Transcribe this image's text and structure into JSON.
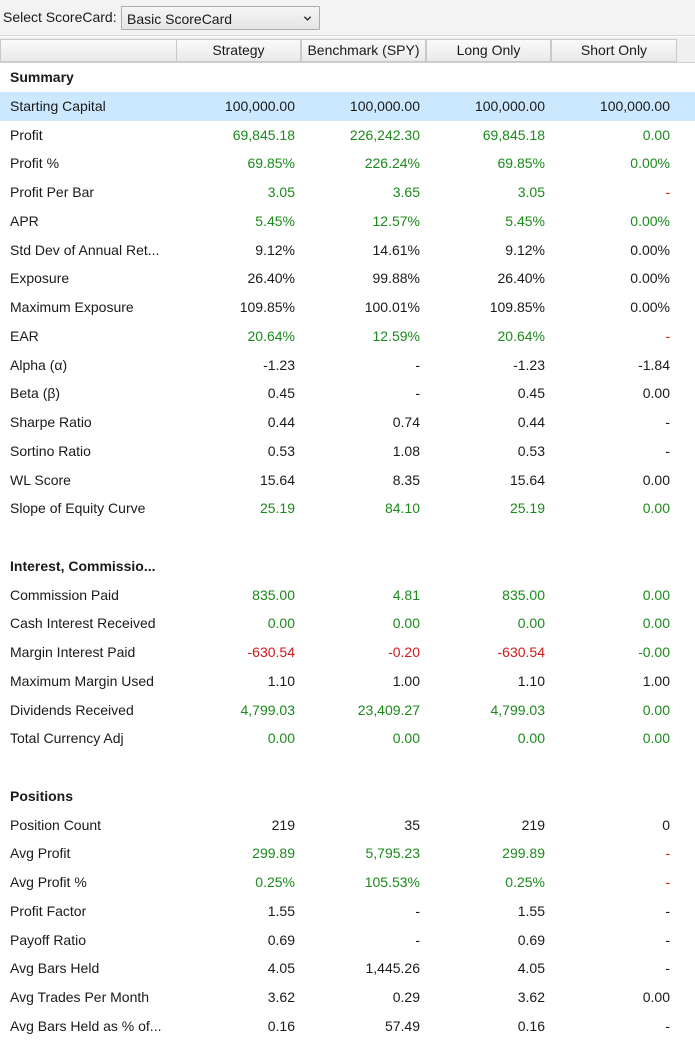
{
  "toolbar": {
    "select_label": "Select ScoreCard:",
    "scorecard_value": "Basic ScoreCard"
  },
  "columns": [
    "Strategy",
    "Benchmark (SPY)",
    "Long Only",
    "Short Only"
  ],
  "colors": {
    "positive": "#1a8a1a",
    "negative": "#d11a1a",
    "neutral": "#1a1a1a",
    "selected_row": "#cce8ff"
  },
  "rows": [
    {
      "type": "section",
      "name": "Summary"
    },
    {
      "type": "data",
      "name": "Starting Capital",
      "values": [
        "100,000.00",
        "100,000.00",
        "100,000.00",
        "100,000.00"
      ],
      "colors": [
        "k",
        "k",
        "k",
        "k"
      ],
      "selected": true
    },
    {
      "type": "data",
      "name": "Profit",
      "values": [
        "69,845.18",
        "226,242.30",
        "69,845.18",
        "0.00"
      ],
      "colors": [
        "g",
        "g",
        "g",
        "g"
      ]
    },
    {
      "type": "data",
      "name": "Profit %",
      "values": [
        "69.85%",
        "226.24%",
        "69.85%",
        "0.00%"
      ],
      "colors": [
        "g",
        "g",
        "g",
        "g"
      ]
    },
    {
      "type": "data",
      "name": "Profit Per Bar",
      "values": [
        "3.05",
        "3.65",
        "3.05",
        "-"
      ],
      "colors": [
        "g",
        "g",
        "g",
        "r"
      ]
    },
    {
      "type": "data",
      "name": "APR",
      "values": [
        "5.45%",
        "12.57%",
        "5.45%",
        "0.00%"
      ],
      "colors": [
        "g",
        "g",
        "g",
        "g"
      ]
    },
    {
      "type": "data",
      "name": "Std Dev of Annual Ret...",
      "values": [
        "9.12%",
        "14.61%",
        "9.12%",
        "0.00%"
      ],
      "colors": [
        "k",
        "k",
        "k",
        "k"
      ]
    },
    {
      "type": "data",
      "name": "Exposure",
      "values": [
        "26.40%",
        "99.88%",
        "26.40%",
        "0.00%"
      ],
      "colors": [
        "k",
        "k",
        "k",
        "k"
      ]
    },
    {
      "type": "data",
      "name": "Maximum Exposure",
      "values": [
        "109.85%",
        "100.01%",
        "109.85%",
        "0.00%"
      ],
      "colors": [
        "k",
        "k",
        "k",
        "k"
      ]
    },
    {
      "type": "data",
      "name": "EAR",
      "values": [
        "20.64%",
        "12.59%",
        "20.64%",
        "-"
      ],
      "colors": [
        "g",
        "g",
        "g",
        "r"
      ]
    },
    {
      "type": "data",
      "name": "Alpha (α)",
      "values": [
        "-1.23",
        "-",
        "-1.23",
        "-1.84"
      ],
      "colors": [
        "k",
        "k",
        "k",
        "k"
      ]
    },
    {
      "type": "data",
      "name": "Beta (β)",
      "values": [
        "0.45",
        "-",
        "0.45",
        "0.00"
      ],
      "colors": [
        "k",
        "k",
        "k",
        "k"
      ]
    },
    {
      "type": "data",
      "name": "Sharpe Ratio",
      "values": [
        "0.44",
        "0.74",
        "0.44",
        "-"
      ],
      "colors": [
        "k",
        "k",
        "k",
        "k"
      ]
    },
    {
      "type": "data",
      "name": "Sortino Ratio",
      "values": [
        "0.53",
        "1.08",
        "0.53",
        "-"
      ],
      "colors": [
        "k",
        "k",
        "k",
        "k"
      ]
    },
    {
      "type": "data",
      "name": "WL Score",
      "values": [
        "15.64",
        "8.35",
        "15.64",
        "0.00"
      ],
      "colors": [
        "k",
        "k",
        "k",
        "k"
      ]
    },
    {
      "type": "data",
      "name": "Slope of Equity Curve",
      "values": [
        "25.19",
        "84.10",
        "25.19",
        "0.00"
      ],
      "colors": [
        "g",
        "g",
        "g",
        "g"
      ]
    },
    {
      "type": "blank"
    },
    {
      "type": "section",
      "name": "Interest, Commissio..."
    },
    {
      "type": "data",
      "name": "Commission Paid",
      "values": [
        "835.00",
        "4.81",
        "835.00",
        "0.00"
      ],
      "colors": [
        "g",
        "g",
        "g",
        "g"
      ]
    },
    {
      "type": "data",
      "name": "Cash Interest Received",
      "values": [
        "0.00",
        "0.00",
        "0.00",
        "0.00"
      ],
      "colors": [
        "g",
        "g",
        "g",
        "g"
      ]
    },
    {
      "type": "data",
      "name": "Margin Interest Paid",
      "values": [
        "-630.54",
        "-0.20",
        "-630.54",
        "-0.00"
      ],
      "colors": [
        "r",
        "r",
        "r",
        "g"
      ]
    },
    {
      "type": "data",
      "name": "Maximum Margin Used",
      "values": [
        "1.10",
        "1.00",
        "1.10",
        "1.00"
      ],
      "colors": [
        "k",
        "k",
        "k",
        "k"
      ]
    },
    {
      "type": "data",
      "name": "Dividends Received",
      "values": [
        "4,799.03",
        "23,409.27",
        "4,799.03",
        "0.00"
      ],
      "colors": [
        "g",
        "g",
        "g",
        "g"
      ]
    },
    {
      "type": "data",
      "name": "Total Currency Adj",
      "values": [
        "0.00",
        "0.00",
        "0.00",
        "0.00"
      ],
      "colors": [
        "g",
        "g",
        "g",
        "g"
      ]
    },
    {
      "type": "blank"
    },
    {
      "type": "section",
      "name": "Positions"
    },
    {
      "type": "data",
      "name": "Position Count",
      "values": [
        "219",
        "35",
        "219",
        "0"
      ],
      "colors": [
        "k",
        "k",
        "k",
        "k"
      ]
    },
    {
      "type": "data",
      "name": "Avg Profit",
      "values": [
        "299.89",
        "5,795.23",
        "299.89",
        "-"
      ],
      "colors": [
        "g",
        "g",
        "g",
        "r"
      ]
    },
    {
      "type": "data",
      "name": "Avg Profit %",
      "values": [
        "0.25%",
        "105.53%",
        "0.25%",
        "-"
      ],
      "colors": [
        "g",
        "g",
        "g",
        "r"
      ]
    },
    {
      "type": "data",
      "name": "Profit Factor",
      "values": [
        "1.55",
        "-",
        "1.55",
        "-"
      ],
      "colors": [
        "k",
        "k",
        "k",
        "k"
      ]
    },
    {
      "type": "data",
      "name": "Payoff Ratio",
      "values": [
        "0.69",
        "-",
        "0.69",
        "-"
      ],
      "colors": [
        "k",
        "k",
        "k",
        "k"
      ]
    },
    {
      "type": "data",
      "name": "Avg Bars Held",
      "values": [
        "4.05",
        "1,445.26",
        "4.05",
        "-"
      ],
      "colors": [
        "k",
        "k",
        "k",
        "k"
      ]
    },
    {
      "type": "data",
      "name": "Avg Trades Per Month",
      "values": [
        "3.62",
        "0.29",
        "3.62",
        "0.00"
      ],
      "colors": [
        "k",
        "k",
        "k",
        "k"
      ]
    },
    {
      "type": "data",
      "name": "Avg Bars Held as % of...",
      "values": [
        "0.16",
        "57.49",
        "0.16",
        "-"
      ],
      "colors": [
        "k",
        "k",
        "k",
        "k"
      ]
    }
  ]
}
